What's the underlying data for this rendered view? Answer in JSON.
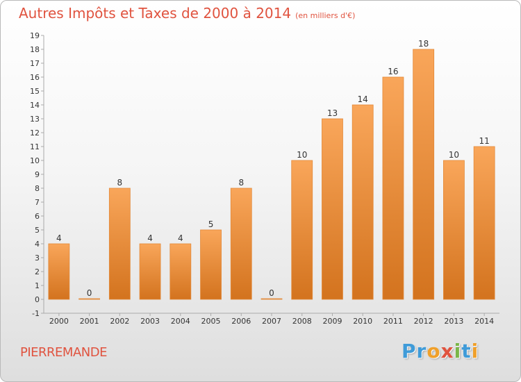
{
  "header": {
    "title": "Autres Impôts et Taxes de 2000 à 2014",
    "unit": "(en milliers d'€)"
  },
  "footer": {
    "commune": "PIERREMANDE",
    "logo_letters": [
      "P",
      "r",
      "o",
      "x",
      "i",
      "t",
      "i"
    ],
    "logo_colors": [
      "#3f9bd8",
      "#3f9bd8",
      "#f0a02a",
      "#e0533f",
      "#7ab648",
      "#3f9bd8",
      "#f0a02a"
    ]
  },
  "chart_data": {
    "type": "bar",
    "title": "Autres Impôts et Taxes de 2000 à 2014",
    "xlabel": "",
    "ylabel": "",
    "categories": [
      "2000",
      "2001",
      "2002",
      "2003",
      "2004",
      "2005",
      "2006",
      "2007",
      "2008",
      "2009",
      "2010",
      "2011",
      "2012",
      "2013",
      "2014"
    ],
    "values": [
      4,
      0,
      8,
      4,
      4,
      5,
      8,
      0,
      10,
      13,
      14,
      16,
      18,
      10,
      11
    ],
    "ylim": [
      -1,
      19
    ],
    "yticks": [
      "-1",
      "0",
      "1",
      "2",
      "3",
      "4",
      "5",
      "6",
      "7",
      "8",
      "9",
      "10",
      "11",
      "12",
      "13",
      "14",
      "15",
      "16",
      "17",
      "18",
      "19"
    ],
    "grid": false,
    "legend": "none",
    "bar_color_light": "#f9a65a",
    "bar_color_dark": "#d3731e"
  }
}
